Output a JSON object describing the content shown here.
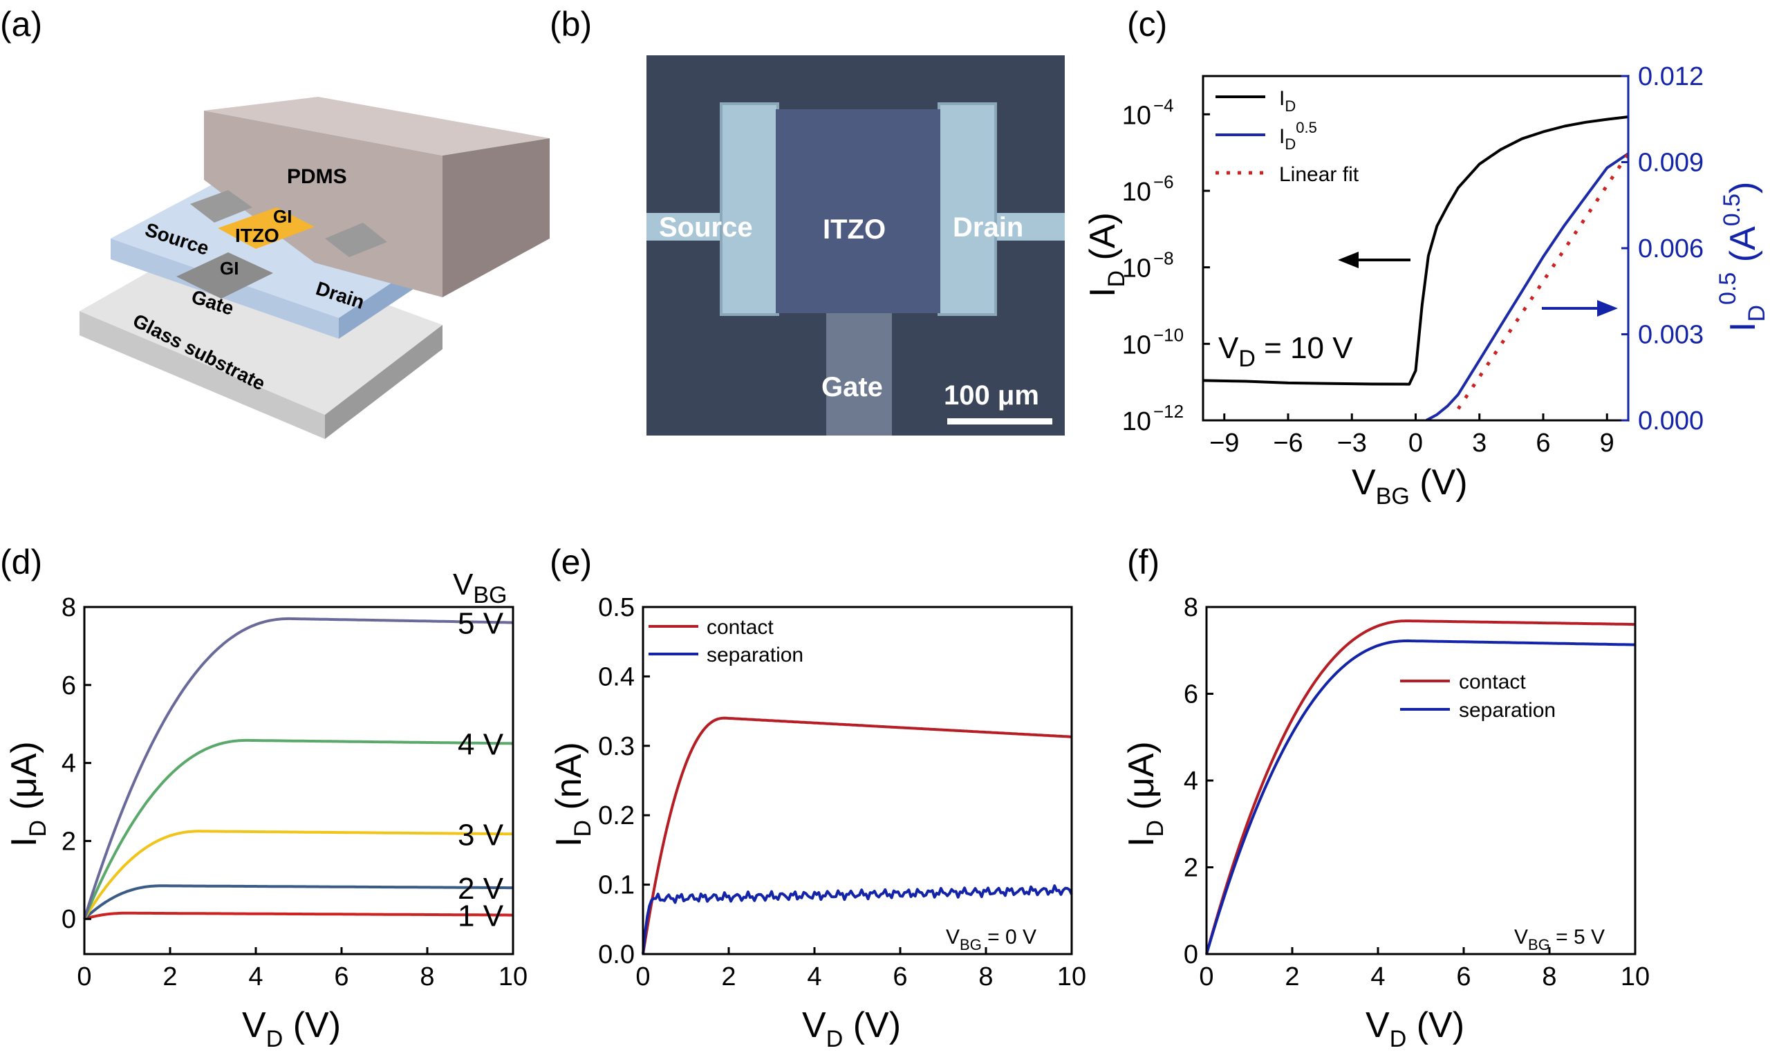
{
  "panels": {
    "a": {
      "label": "(a)",
      "texts": {
        "pdms": "PDMS",
        "gi_top": "GI",
        "source": "Source",
        "itzo": "ITZO",
        "gi_bottom": "GI",
        "drain": "Drain",
        "gate": "Gate",
        "glass": "Glass substrate"
      },
      "colors": {
        "pdms": "#b7a9a6",
        "itzo": "#f5b52e",
        "gi": "#c9d9ec",
        "glass": "#d6d6d6",
        "electrode": "#8a8a8a"
      }
    },
    "b": {
      "label": "(b)",
      "texts": {
        "source": "Source",
        "itzo": "ITZO",
        "drain": "Drain",
        "gate": "Gate",
        "scale": "100 μm"
      },
      "colors": {
        "background": "#3a4458",
        "channel": "#4c5a7e",
        "electrode": "#a9c6d6"
      }
    },
    "c": {
      "label": "(c)"
    },
    "d": {
      "label": "(d)"
    },
    "e": {
      "label": "(e)"
    },
    "f": {
      "label": "(f)"
    }
  },
  "chart_data": [
    {
      "panel": "c",
      "type": "line",
      "xlabel": "V",
      "xlabel_sub": "BG",
      "xlabel_unit": " (V)",
      "ylabel": "I",
      "ylabel_sub": "D",
      "ylabel_unit": " (A)",
      "y2label": "I",
      "y2label_sub": "D",
      "y2label_sup": "0.5",
      "y2label_unit": " (A",
      "y2label_unit_sup": "0.5",
      "y2label_close": ")",
      "xlim": [
        -10,
        10
      ],
      "ylim_log10": [
        -12,
        -3
      ],
      "y_scale": "log",
      "y2lim": [
        0,
        0.012
      ],
      "xticks": [
        "−9",
        "−6",
        "−3",
        "0",
        "3",
        "6",
        "9"
      ],
      "yticks_base": "10",
      "yticks_exp": [
        "−12",
        "−10",
        "−8",
        "−6",
        "−4"
      ],
      "y2ticks": [
        "0.000",
        "0.003",
        "0.006",
        "0.009",
        "0.012"
      ],
      "annotation": "V",
      "annotation_sub": "D",
      "annotation_rest": " = 10 V",
      "legend": [
        {
          "label": "I",
          "sub": "D",
          "sup": "",
          "color": "#000000",
          "style": "solid"
        },
        {
          "label": "I",
          "sub": "D",
          "sup": "0.5",
          "color": "#1c2aa8",
          "style": "solid"
        },
        {
          "label": "Linear fit",
          "sub": "",
          "sup": "",
          "color": "#cc2222",
          "style": "dotted"
        }
      ],
      "series": [
        {
          "name": "I_D",
          "axis": "left",
          "color": "#000000",
          "x": [
            -10,
            -8,
            -6,
            -4,
            -2,
            -0.3,
            0,
            0.3,
            0.6,
            1,
            1.5,
            2,
            3,
            4,
            5,
            6,
            7,
            8,
            9,
            10
          ],
          "y": [
            1.1e-11,
            1.05e-11,
            9.5e-12,
            9.2e-12,
            8.9e-12,
            8.8e-12,
            2e-11,
            1e-09,
            2e-08,
            1.2e-07,
            4e-07,
            1.2e-06,
            5e-06,
            1.2e-05,
            2.3e-05,
            3.5e-05,
            4.9e-05,
            6.2e-05,
            7.4e-05,
            8.6e-05
          ]
        },
        {
          "name": "I_D^0.5",
          "axis": "right",
          "color": "#1c2aa8",
          "x": [
            0.5,
            1,
            1.5,
            2,
            3,
            4,
            5,
            6,
            7,
            8,
            9,
            10
          ],
          "y": [
            0,
            0.0002,
            0.0005,
            0.0009,
            0.0021,
            0.0033,
            0.0045,
            0.0057,
            0.0068,
            0.0078,
            0.0088,
            0.0093
          ]
        },
        {
          "name": "Linear fit",
          "axis": "right",
          "color": "#cc2222",
          "dotted": true,
          "x": [
            2,
            10
          ],
          "y": [
            0.0004,
            0.0093
          ]
        }
      ],
      "arrows": [
        {
          "color": "#000000",
          "direction": "left"
        },
        {
          "color": "#1c2aa8",
          "direction": "right"
        }
      ]
    },
    {
      "panel": "d",
      "type": "line",
      "xlabel": "V",
      "xlabel_sub": "D",
      "xlabel_unit": " (V)",
      "ylabel": "I",
      "ylabel_sub": "D",
      "ylabel_unit": " (μA)",
      "xlim": [
        0,
        10
      ],
      "ylim": [
        -0.9,
        8
      ],
      "xticks": [
        0,
        2,
        4,
        6,
        8,
        10
      ],
      "yticks": [
        0,
        2,
        4,
        6,
        8
      ],
      "legend_title": "V",
      "legend_title_sub": "BG",
      "series": [
        {
          "name": "1 V",
          "color": "#cc2222",
          "isat": 0.15,
          "vsat": 1.0,
          "end": 0.1
        },
        {
          "name": "2 V",
          "color": "#3a5b85",
          "isat": 0.85,
          "vsat": 1.8,
          "end": 0.8
        },
        {
          "name": "3 V",
          "color": "#f0c419",
          "isat": 2.25,
          "vsat": 2.7,
          "end": 2.18
        },
        {
          "name": "4 V",
          "color": "#5aa86a",
          "isat": 4.58,
          "vsat": 3.8,
          "end": 4.5
        },
        {
          "name": "5 V",
          "color": "#6a6a9a",
          "isat": 7.7,
          "vsat": 4.8,
          "end": 7.6
        }
      ]
    },
    {
      "panel": "e",
      "type": "line",
      "xlabel": "V",
      "xlabel_sub": "D",
      "xlabel_unit": " (V)",
      "ylabel": "I",
      "ylabel_sub": "D",
      "ylabel_unit": " (nA)",
      "xlim": [
        0,
        10
      ],
      "ylim": [
        0,
        0.5
      ],
      "xticks": [
        0,
        2,
        4,
        6,
        8,
        10
      ],
      "yticks": [
        "0.0",
        "0.1",
        "0.2",
        "0.3",
        "0.4",
        "0.5"
      ],
      "annotation": "V",
      "annotation_sub": "BG",
      "annotation_rest": " = 0 V",
      "series": [
        {
          "name": "contact",
          "color": "#b51e24",
          "isat": 0.34,
          "vsat": 1.9,
          "end": 0.313
        },
        {
          "name": "separation",
          "color": "#1424a8",
          "isat": 0.08,
          "vsat": 0.25,
          "end": 0.092,
          "noisy": true
        }
      ]
    },
    {
      "panel": "f",
      "type": "line",
      "xlabel": "V",
      "xlabel_sub": "D",
      "xlabel_unit": " (V)",
      "ylabel": "I",
      "ylabel_sub": "D",
      "ylabel_unit": " (μA)",
      "xlim": [
        0,
        10
      ],
      "ylim": [
        0,
        8
      ],
      "xticks": [
        0,
        2,
        4,
        6,
        8,
        10
      ],
      "yticks": [
        0,
        2,
        4,
        6,
        8
      ],
      "annotation": "V",
      "annotation_sub": "BG",
      "annotation_rest": " = 5 V",
      "series": [
        {
          "name": "contact",
          "color": "#b51e24",
          "isat": 7.68,
          "vsat": 4.7,
          "end": 7.6
        },
        {
          "name": "separation",
          "color": "#1424a8",
          "isat": 7.22,
          "vsat": 4.7,
          "end": 7.13
        }
      ]
    }
  ]
}
